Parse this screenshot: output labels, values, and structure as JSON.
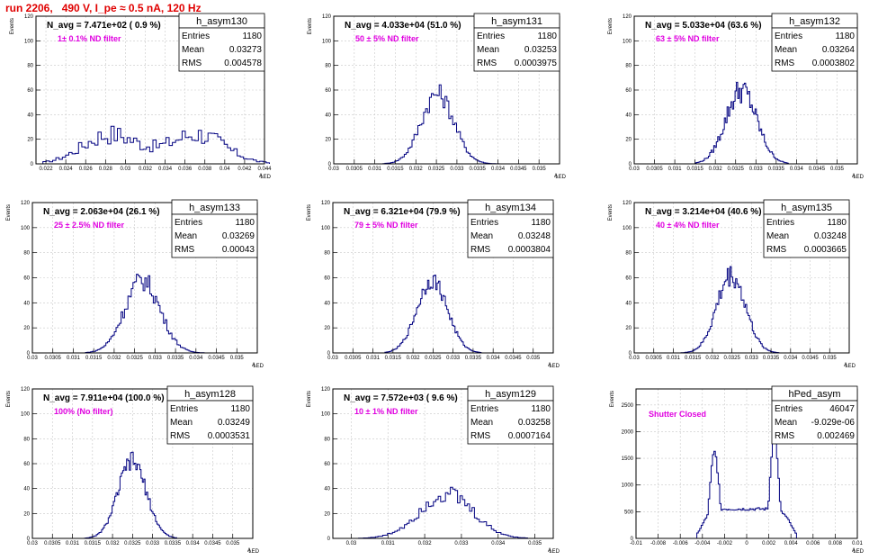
{
  "run_title": "run 2206,   490 V, I_pe ≈ 0.5 nA, 120 Hz",
  "colors": {
    "title": "#e00000",
    "histogram": "#000080",
    "filter_label": "#e000e0",
    "grid": "#c8c8c8"
  },
  "stat_labels": {
    "entries": "Entries",
    "mean": "Mean",
    "rms": "RMS"
  },
  "chart_data": [
    {
      "type": "histogram",
      "name": "h_asym130",
      "n_avg_label": "N_avg = 7.471e+02 ( 0.9 %)",
      "filter_label": "1± 0.1% ND filter",
      "stats": {
        "entries": "1180",
        "mean": "0.03273",
        "rms": "0.004578"
      },
      "xlim": [
        0.021,
        0.044
      ],
      "ylim": [
        0,
        120
      ],
      "xticks": [
        "0.022",
        "0.024",
        "0.026",
        "0.028",
        "0.03",
        "0.032",
        "0.034",
        "0.036",
        "0.038",
        "0.04",
        "0.042",
        "0.044"
      ],
      "yticks": [
        "0",
        "20",
        "40",
        "60",
        "80",
        "100",
        "120"
      ],
      "xlabel": "A_{LED}",
      "ylabel": "Events",
      "bin_edges": [
        0.0217,
        0.0445
      ],
      "shape": "double",
      "peaks": [
        {
          "mu": 0.0285,
          "sigma": 0.0028,
          "height": 24
        },
        {
          "mu": 0.0372,
          "sigma": 0.0028,
          "height": 24
        }
      ],
      "jitter": 0.35
    },
    {
      "type": "histogram",
      "name": "h_asym131",
      "n_avg_label": "N_avg = 4.033e+04 (51.0 %)",
      "filter_label": "50 ± 5% ND filter",
      "stats": {
        "entries": "1180",
        "mean": "0.03253",
        "rms": "0.0003975"
      },
      "xlim": [
        0.03,
        0.0355
      ],
      "ylim": [
        0,
        120
      ],
      "xticks": [
        "0.03",
        "0.0305",
        "0.031",
        "0.0315",
        "0.032",
        "0.0325",
        "0.033",
        "0.0335",
        "0.034",
        "0.0345",
        "0.035"
      ],
      "yticks": [
        "0",
        "20",
        "40",
        "60",
        "80",
        "100",
        "120"
      ],
      "xlabel": "A_{LED}",
      "ylabel": "Events",
      "bin_edges": [
        0.0312,
        0.0345
      ],
      "shape": "gauss",
      "peaks": [
        {
          "mu": 0.03253,
          "sigma": 0.000397,
          "height": 57
        }
      ],
      "jitter": 0.15
    },
    {
      "type": "histogram",
      "name": "h_asym132",
      "n_avg_label": "N_avg = 5.033e+04 (63.6 %)",
      "filter_label": "63 ± 5% ND filter",
      "stats": {
        "entries": "1180",
        "mean": "0.03264",
        "rms": "0.0003802"
      },
      "xlim": [
        0.03,
        0.0355
      ],
      "ylim": [
        0,
        120
      ],
      "xticks": [
        "0.03",
        "0.0305",
        "0.031",
        "0.0315",
        "0.032",
        "0.0325",
        "0.033",
        "0.0335",
        "0.034",
        "0.0345",
        "0.035"
      ],
      "yticks": [
        "0",
        "20",
        "40",
        "60",
        "80",
        "100",
        "120"
      ],
      "xlabel": "A_{LED}",
      "ylabel": "Events",
      "bin_edges": [
        0.0315,
        0.0338
      ],
      "shape": "gauss",
      "peaks": [
        {
          "mu": 0.03264,
          "sigma": 0.00038,
          "height": 60
        }
      ],
      "jitter": 0.18
    },
    {
      "type": "histogram",
      "name": "h_asym133",
      "n_avg_label": "N_avg = 2.063e+04 (26.1 %)",
      "filter_label": "25 ± 2.5% ND filter",
      "stats": {
        "entries": "1180",
        "mean": "0.03269",
        "rms": "0.00043"
      },
      "xlim": [
        0.03,
        0.0355
      ],
      "ylim": [
        0,
        120
      ],
      "xticks": [
        "0.03",
        "0.0305",
        "0.031",
        "0.0315",
        "0.032",
        "0.0325",
        "0.033",
        "0.0335",
        "0.034",
        "0.0345",
        "0.035"
      ],
      "yticks": [
        "0",
        "20",
        "40",
        "60",
        "80",
        "100",
        "120"
      ],
      "xlabel": "A_{LED}",
      "ylabel": "Events",
      "bin_edges": [
        0.0313,
        0.0342
      ],
      "shape": "gauss",
      "peaks": [
        {
          "mu": 0.03269,
          "sigma": 0.00043,
          "height": 58
        }
      ],
      "jitter": 0.15
    },
    {
      "type": "histogram",
      "name": "h_asym134",
      "n_avg_label": "N_avg = 6.321e+04 (79.9 %)",
      "filter_label": "79 ± 5% ND filter",
      "stats": {
        "entries": "1180",
        "mean": "0.03248",
        "rms": "0.0003804"
      },
      "xlim": [
        0.03,
        0.0355
      ],
      "ylim": [
        0,
        120
      ],
      "xticks": [
        "0.03",
        "0.0305",
        "0.031",
        "0.0315",
        "0.032",
        "0.0325",
        "0.033",
        "0.0335",
        "0.034",
        "0.0345",
        "0.035"
      ],
      "yticks": [
        "0",
        "20",
        "40",
        "60",
        "80",
        "100",
        "120"
      ],
      "xlabel": "A_{LED}",
      "ylabel": "Events",
      "bin_edges": [
        0.0313,
        0.0337
      ],
      "shape": "gauss",
      "peaks": [
        {
          "mu": 0.03248,
          "sigma": 0.00038,
          "height": 58
        }
      ],
      "jitter": 0.12
    },
    {
      "type": "histogram",
      "name": "h_asym135",
      "n_avg_label": "N_avg = 3.214e+04 (40.6 %)",
      "filter_label": "40 ± 4% ND filter",
      "stats": {
        "entries": "1180",
        "mean": "0.03248",
        "rms": "0.0003665"
      },
      "xlim": [
        0.03,
        0.0355
      ],
      "ylim": [
        0,
        120
      ],
      "xticks": [
        "0.03",
        "0.0305",
        "0.031",
        "0.0315",
        "0.032",
        "0.0325",
        "0.033",
        "0.0335",
        "0.034",
        "0.0345",
        "0.035"
      ],
      "yticks": [
        "0",
        "20",
        "40",
        "60",
        "80",
        "100",
        "120"
      ],
      "xlabel": "A_{LED}",
      "ylabel": "Events",
      "bin_edges": [
        0.0312,
        0.0337
      ],
      "shape": "gauss",
      "peaks": [
        {
          "mu": 0.03248,
          "sigma": 0.000367,
          "height": 62
        }
      ],
      "jitter": 0.15
    },
    {
      "type": "histogram",
      "name": "h_asym128",
      "n_avg_label": "N_avg = 7.911e+04 (100.0 %)",
      "filter_label": "100% (No filter)",
      "stats": {
        "entries": "1180",
        "mean": "0.03249",
        "rms": "0.0003531"
      },
      "xlim": [
        0.03,
        0.0355
      ],
      "ylim": [
        0,
        120
      ],
      "xticks": [
        "0.03",
        "0.0305",
        "0.031",
        "0.0315",
        "0.032",
        "0.0325",
        "0.033",
        "0.0335",
        "0.034",
        "0.0345",
        "0.035"
      ],
      "yticks": [
        "0",
        "20",
        "40",
        "60",
        "80",
        "100",
        "120"
      ],
      "xlabel": "A_{LED}",
      "ylabel": "Events",
      "bin_edges": [
        0.0313,
        0.0336
      ],
      "shape": "gauss",
      "peaks": [
        {
          "mu": 0.03249,
          "sigma": 0.000353,
          "height": 62
        }
      ],
      "jitter": 0.12
    },
    {
      "type": "histogram",
      "name": "h_asym129",
      "n_avg_label": "N_avg = 7.572e+03 ( 9.6 %)",
      "filter_label": "10 ± 1% ND filter",
      "stats": {
        "entries": "1180",
        "mean": "0.03258",
        "rms": "0.0007164"
      },
      "xlim": [
        0.0295,
        0.0355
      ],
      "ylim": [
        0,
        120
      ],
      "xticks": [
        "0.03",
        "0.031",
        "0.032",
        "0.033",
        "0.034",
        "0.035"
      ],
      "yticks": [
        "0",
        "20",
        "40",
        "60",
        "80",
        "100",
        "120"
      ],
      "xlabel": "A_{LED}",
      "ylabel": "Events",
      "bin_edges": [
        0.0302,
        0.0348
      ],
      "shape": "gauss",
      "peaks": [
        {
          "mu": 0.03258,
          "sigma": 0.00072,
          "height": 36
        }
      ],
      "jitter": 0.2
    },
    {
      "type": "histogram",
      "name": "hPed_asym",
      "n_avg_label": "",
      "filter_label": "Shutter Closed",
      "stats": {
        "entries": "46047",
        "mean": "-9.029e-06",
        "rms": "0.002469"
      },
      "xlim": [
        -0.01,
        0.01
      ],
      "ylim": [
        0,
        2800
      ],
      "xticks": [
        "-0.01",
        "-0.008",
        "-0.006",
        "-0.004",
        "-0.002",
        "0",
        "0.002",
        "0.004",
        "0.006",
        "0.008",
        "0.01"
      ],
      "yticks": [
        "0",
        "500",
        "1000",
        "1500",
        "2000",
        "2500"
      ],
      "xlabel": "A_{LED}",
      "ylabel": "Events",
      "bin_edges": [
        -0.0045,
        0.0045
      ],
      "shape": "bimodal",
      "peaks": [
        {
          "mu": -0.0029,
          "sigma": 0.0004,
          "height": 1600
        },
        {
          "mu": 0.0025,
          "sigma": 0.00035,
          "height": 2050
        }
      ],
      "floor": 550,
      "jitter": 0.05
    }
  ]
}
